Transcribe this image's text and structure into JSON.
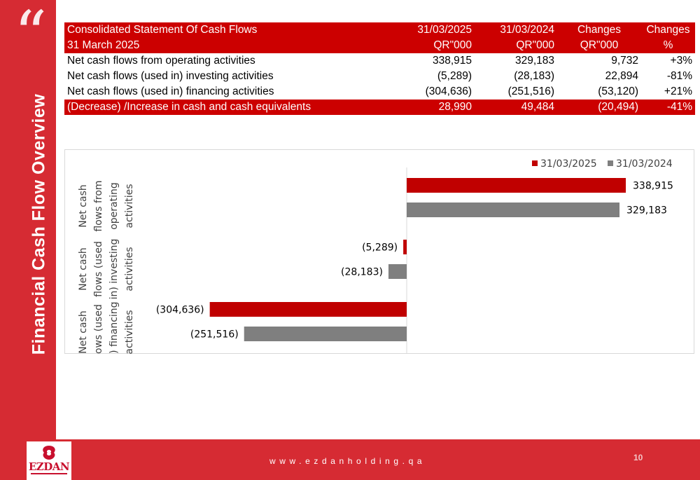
{
  "sidebar": {
    "quote_glyph": "“",
    "title": "Financial Cash Flow  Overview"
  },
  "table": {
    "header_row1": [
      "Consolidated Statement Of Cash Flows",
      "31/03/2025",
      "31/03/2024",
      "Changes",
      "Changes"
    ],
    "header_row2": [
      "31 March 2025",
      "QR\"000",
      "QR\"000",
      "QR\"000",
      "%"
    ],
    "rows": [
      [
        "Net cash flows from operating activities",
        "338,915",
        "329,183",
        "9,732",
        "+3%"
      ],
      [
        "Net cash flows (used in) investing activities",
        "(5,289)",
        "(28,183)",
        "22,894",
        "-81%"
      ],
      [
        "Net cash flows (used in) financing activities",
        "(304,636)",
        "(251,516)",
        "(53,120)",
        "+21%"
      ]
    ],
    "total_row": [
      "(Decrease) /Increase  in cash and cash equivalents",
      "28,990",
      "49,484",
      "(20,494)",
      "-41%"
    ]
  },
  "chart_data": {
    "type": "bar",
    "orientation": "horizontal",
    "categories": [
      "Net cash flows from operating activities",
      "Net cash flows (used in) investing activities",
      "Net cash flows (used in) financing activities"
    ],
    "category_label_lines": [
      [
        "Net cash",
        "flows from",
        "operating",
        "activities"
      ],
      [
        "Net cash",
        "flows (used",
        "in) investing",
        "activities"
      ],
      [
        "Net cash",
        "flows (used",
        "in) financing",
        "activities"
      ]
    ],
    "series": [
      {
        "name": "31/03/2025",
        "color": "#c00000",
        "values": [
          338915,
          -5289,
          -304636
        ],
        "labels": [
          "338,915",
          "(5,289)",
          "(304,636)"
        ]
      },
      {
        "name": "31/03/2024",
        "color": "#7f7f7f",
        "values": [
          329183,
          -28183,
          -251516
        ],
        "labels": [
          "329,183",
          "(28,183)",
          "(251,516)"
        ]
      }
    ],
    "xlim": [
      -400000,
      400000
    ],
    "legend": "top-right",
    "grid": false
  },
  "footer": {
    "website": "www.ezdanholding.qa",
    "page_number": "10",
    "logo_text": "EZDAN"
  },
  "colors": {
    "brand_red": "#d62b33",
    "table_red": "#cc0000",
    "series_2025": "#c00000",
    "series_2024": "#7f7f7f"
  }
}
